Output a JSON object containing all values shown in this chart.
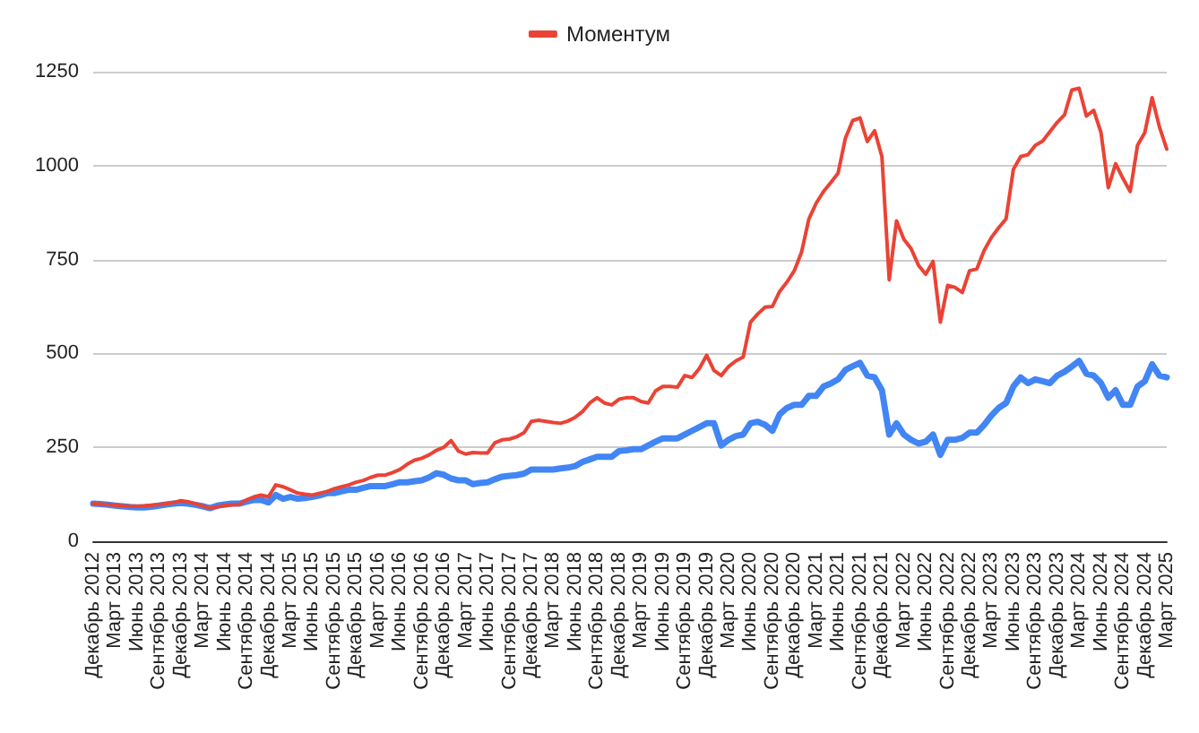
{
  "chart_data": {
    "type": "line",
    "categories": [
      "Декабрь 2012",
      null,
      null,
      "Март 2013",
      null,
      null,
      "Июнь 2013",
      null,
      null,
      "Сентябрь 2013",
      null,
      null,
      "Декабрь 2013",
      null,
      null,
      "Март 2014",
      null,
      null,
      "Июнь 2014",
      null,
      null,
      "Сентябрь 2014",
      null,
      null,
      "Декабрь 2014",
      null,
      null,
      "Март 2015",
      null,
      null,
      "Июнь 2015",
      null,
      null,
      "Сентябрь 2015",
      null,
      null,
      "Декабрь 2015",
      null,
      null,
      "Март 2016",
      null,
      null,
      "Июнь 2016",
      null,
      null,
      "Сентябрь 2016",
      null,
      null,
      "Декабрь 2016",
      null,
      null,
      "Март 2017",
      null,
      null,
      "Июнь 2017",
      null,
      null,
      "Сентябрь 2017",
      null,
      null,
      "Декабрь 2017",
      null,
      null,
      "Март 2018",
      null,
      null,
      "Июнь 2018",
      null,
      null,
      "Сентябрь 2018",
      null,
      null,
      "Декабрь 2018",
      null,
      null,
      "Март 2019",
      null,
      null,
      "Июнь 2019",
      null,
      null,
      "Сентябрь 2019",
      null,
      null,
      "Декабрь 2019",
      null,
      null,
      "Март 2020",
      null,
      null,
      "Июнь 2020",
      null,
      null,
      "Сентябрь 2020",
      null,
      null,
      "Декабрь 2020",
      null,
      null,
      "Март 2021",
      null,
      null,
      "Июнь 2021",
      null,
      null,
      "Сентябрь 2021",
      null,
      null,
      "Декабрь 2021",
      null,
      null,
      "Март 2022",
      null,
      null,
      "Июнь 2022",
      null,
      null,
      "Сентябрь 2022",
      null,
      null,
      "Декабрь 2022",
      null,
      null,
      "Март 2023",
      null,
      null,
      "Июнь 2023",
      null,
      null,
      "Сентябрь 2023",
      null,
      null,
      "Декабрь 2023",
      null,
      null,
      "Март 2024",
      null,
      null,
      "Июнь 2024",
      null,
      null,
      "Сентябрь 2024",
      null,
      null,
      "Декабрь 2024",
      null,
      null,
      "Март 2025"
    ],
    "series": [
      {
        "color": "#4285f4",
        "values": [
          100,
          99,
          97,
          95,
          93,
          91,
          90,
          90,
          92,
          95,
          98,
          100,
          102,
          100,
          97,
          93,
          88,
          95,
          98,
          100,
          100,
          105,
          110,
          110,
          103,
          123,
          113,
          118,
          113,
          115,
          118,
          122,
          128,
          128,
          133,
          137,
          137,
          142,
          147,
          147,
          147,
          152,
          157,
          157,
          160,
          162,
          170,
          181,
          177,
          167,
          162,
          162,
          152,
          155,
          157,
          165,
          172,
          174,
          176,
          180,
          191,
          191,
          191,
          191,
          194,
          196,
          200,
          211,
          218,
          225,
          225,
          225,
          240,
          242,
          245,
          245,
          255,
          265,
          274,
          274,
          274,
          284,
          294,
          304,
          314,
          314,
          255,
          270,
          280,
          284,
          314,
          318,
          310,
          294,
          338,
          355,
          363,
          363,
          387,
          387,
          412,
          420,
          431,
          456,
          466,
          475,
          441,
          436,
          402,
          284,
          314,
          284,
          270,
          260,
          265,
          284,
          230,
          270,
          270,
          275,
          289,
          289,
          310,
          335,
          355,
          368,
          412,
          436,
          421,
          431,
          426,
          421,
          441,
          451,
          465,
          480,
          446,
          441,
          421,
          382,
          402,
          363,
          363,
          412,
          426,
          471,
          441,
          436
        ]
      },
      {
        "name": "Моментум",
        "color": "#ea4335",
        "values": [
          100,
          99,
          98,
          96,
          94,
          93,
          93,
          94,
          96,
          98,
          100,
          103,
          108,
          105,
          100,
          94,
          88,
          92,
          95,
          97,
          98,
          110,
          118,
          123,
          118,
          150,
          145,
          137,
          128,
          125,
          123,
          128,
          132,
          140,
          145,
          150,
          157,
          162,
          170,
          176,
          176,
          183,
          191,
          205,
          216,
          221,
          230,
          242,
          250,
          268,
          240,
          232,
          236,
          235,
          235,
          262,
          270,
          272,
          278,
          289,
          319,
          322,
          319,
          316,
          314,
          320,
          330,
          345,
          368,
          382,
          368,
          363,
          378,
          382,
          382,
          372,
          368,
          400,
          412,
          412,
          410,
          441,
          436,
          460,
          495,
          455,
          441,
          465,
          480,
          490,
          583,
          605,
          623,
          625,
          665,
          690,
          720,
          770,
          858,
          900,
          931,
          955,
          980,
          1073,
          1120,
          1127,
          1064,
          1093,
          1024,
          696,
          853,
          804,
          779,
          735,
          711,
          745,
          583,
          681,
          676,
          662,
          720,
          725,
          774,
          809,
          835,
          858,
          990,
          1024,
          1029,
          1054,
          1065,
          1090,
          1115,
          1135,
          1201,
          1206,
          1132,
          1147,
          1088,
          941,
          1005,
          966,
          931,
          1054,
          1088,
          1181,
          1103,
          1044
        ]
      }
    ],
    "ylim": [
      0,
      1250
    ],
    "yticks": [
      0,
      250,
      500,
      750,
      1000,
      1250
    ],
    "grid": "y",
    "legend": "top",
    "marker": "none",
    "line_style": "solid"
  }
}
